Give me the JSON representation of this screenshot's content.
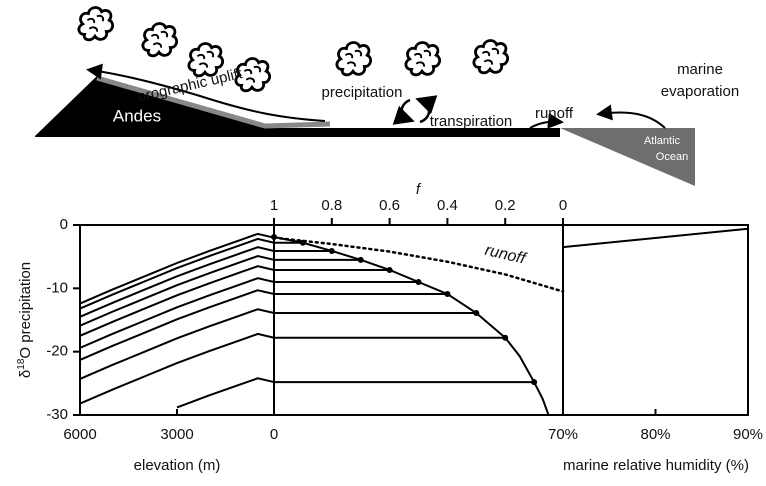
{
  "diagram": {
    "orographic": "orographic uplift",
    "andes": "Andes",
    "precipitation": "precipitation",
    "transpiration": "transpiration",
    "runoff": "runoff",
    "evaporation": [
      "marine",
      "evaporation"
    ],
    "ocean": [
      "Atlantic",
      "Ocean"
    ]
  },
  "chart_data": [
    {
      "type": "line",
      "ylabel": [
        "δ",
        "18",
        "O precipitation"
      ],
      "xlabel": "elevation (m)",
      "xlim": [
        6000,
        0
      ],
      "xticks": [
        6000,
        3000,
        0
      ],
      "ylim": [
        -30,
        0
      ],
      "yticks": [
        0,
        -10,
        -20,
        -30
      ],
      "x": [
        6000,
        5000,
        4000,
        3000,
        2000,
        1000,
        500,
        0
      ],
      "series": [
        {
          "color": "#000",
          "values": [
            -12.4,
            -10.2,
            -8.1,
            -6,
            -4.1,
            -2.3,
            -1.4,
            -2
          ]
        },
        {
          "color": "#000",
          "values": [
            -13.2,
            -11,
            -8.9,
            -6.8,
            -4.9,
            -3.1,
            -2.2,
            -2.8
          ]
        },
        {
          "color": "#000",
          "values": [
            -14.5,
            -12.3,
            -10.2,
            -8.1,
            -6.2,
            -4.4,
            -3.5,
            -4.1
          ]
        },
        {
          "color": "#000",
          "values": [
            -15.9,
            -13.7,
            -11.6,
            -9.5,
            -7.6,
            -5.8,
            -4.9,
            -5.5
          ]
        },
        {
          "color": "#000",
          "values": [
            -17.5,
            -15.3,
            -13.2,
            -11.1,
            -9.2,
            -7.4,
            -6.5,
            -7.1
          ]
        },
        {
          "color": "#000",
          "values": [
            -19.4,
            -17.2,
            -15.1,
            -13,
            -11.1,
            -9.3,
            -8.4,
            -9
          ]
        },
        {
          "color": "#000",
          "values": [
            -21.3,
            -19.1,
            -17,
            -14.9,
            -13,
            -11.2,
            -10.3,
            -10.9
          ]
        },
        {
          "color": "#000",
          "values": [
            -24.3,
            -22.1,
            -20,
            -17.9,
            -16,
            -14.2,
            -13.3,
            -13.9
          ]
        },
        {
          "color": "#000",
          "values": [
            -28.2,
            -26,
            -23.9,
            -21.8,
            -19.9,
            -18.1,
            -17.2,
            -17.8
          ]
        },
        {
          "color": "#000",
          "values": [
            null,
            null,
            null,
            -28.8,
            -26.9,
            -25.1,
            -24.2,
            -24.8
          ]
        }
      ]
    },
    {
      "type": "line",
      "xlabel": "f",
      "xlim": [
        1,
        0
      ],
      "xticks": [
        1,
        0.8,
        0.6,
        0.4,
        0.2,
        0
      ],
      "ylim": [
        -30,
        0
      ],
      "series": [
        {
          "color": "#000",
          "style": "solid",
          "x": [
            1,
            0.9,
            0.8,
            0.7,
            0.6,
            0.5,
            0.4,
            0.3,
            0.2,
            0.15,
            0.1,
            0.07,
            0.05
          ],
          "values": [
            -1.9,
            -2.8,
            -4.1,
            -5.5,
            -7.1,
            -9,
            -10.9,
            -13.9,
            -17.8,
            -20.7,
            -24.8,
            -27.5,
            -30
          ]
        },
        {
          "color": "#000",
          "style": "dotted",
          "x": [
            1,
            0.8,
            0.6,
            0.4,
            0.2,
            0
          ],
          "values": [
            -2,
            -3,
            -4.2,
            -5.8,
            -7.8,
            -10.5
          ]
        }
      ],
      "points": {
        "x": [
          1,
          0.9,
          0.8,
          0.7,
          0.6,
          0.5,
          0.4,
          0.3,
          0.2,
          0.1
        ],
        "values": [
          -1.9,
          -2.8,
          -4.1,
          -5.5,
          -7.1,
          -9,
          -10.9,
          -13.9,
          -17.8,
          -24.8
        ]
      },
      "annotation": "runoff"
    },
    {
      "type": "line",
      "xlabel": "marine relative humidity (%)",
      "xlim": [
        70,
        90
      ],
      "xticks": [
        {
          "value": 70,
          "label": "70%"
        },
        {
          "value": 80,
          "label": "80%"
        },
        {
          "value": 90,
          "label": "90%"
        }
      ],
      "ylim": [
        -30,
        0
      ],
      "x": [
        70,
        90
      ],
      "series": [
        {
          "color": "#000",
          "values": [
            -3.5,
            -0.6
          ]
        }
      ]
    }
  ]
}
